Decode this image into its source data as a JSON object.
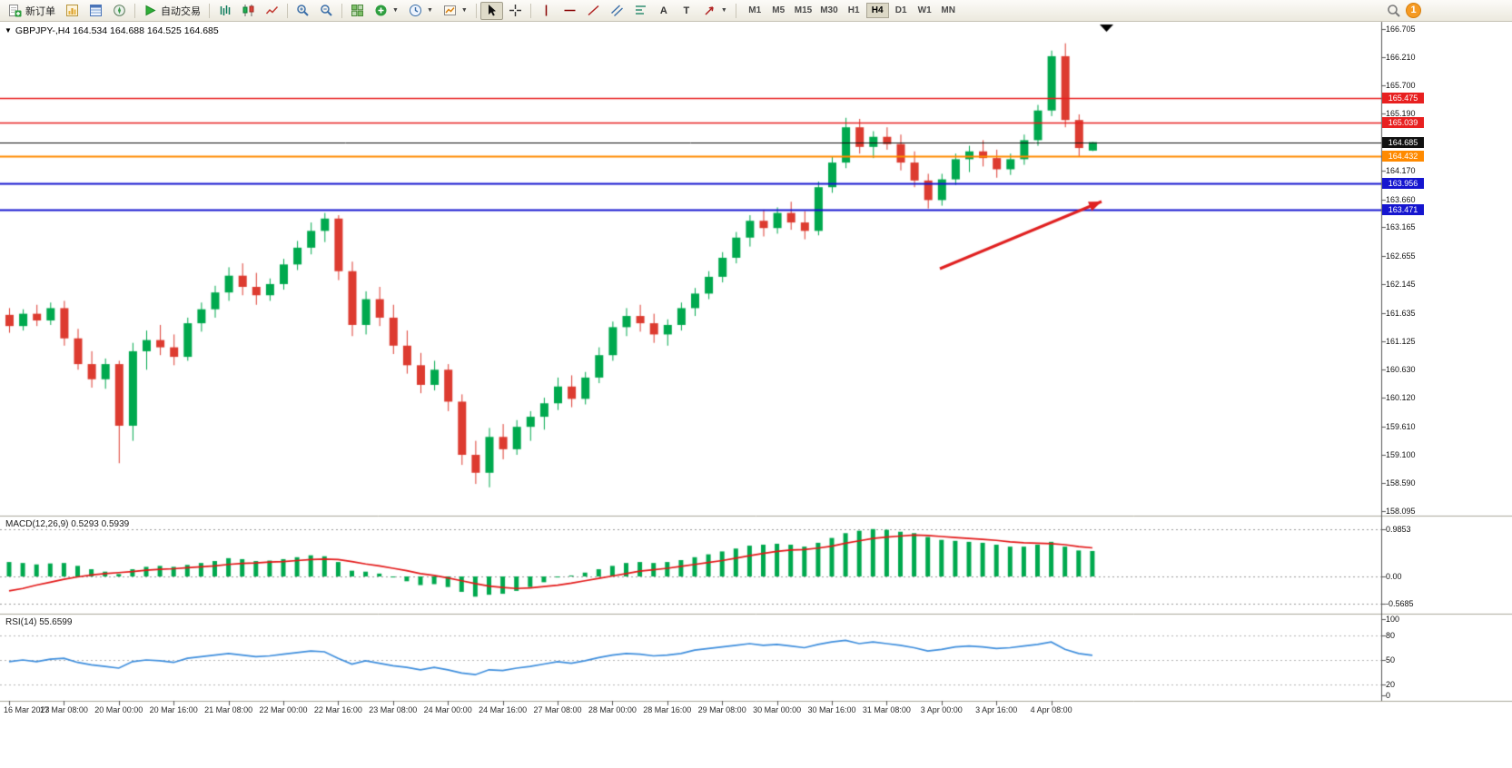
{
  "toolbar": {
    "new_order": "新订单",
    "auto_trading": "自动交易",
    "text_tool": "A",
    "label_tool": "T",
    "timeframes": [
      "M1",
      "M5",
      "M15",
      "M30",
      "H1",
      "H4",
      "D1",
      "W1",
      "MN"
    ],
    "active_timeframe": "H4",
    "notification_badge": "1"
  },
  "chart_header": {
    "title": "GBPJPY-,H4 164.534 164.688 164.525 164.685"
  },
  "price_axis": {
    "ticks": [
      "166.705",
      "166.210",
      "165.700",
      "165.190",
      "164.170",
      "163.660",
      "163.165",
      "162.655",
      "162.145",
      "161.635",
      "161.125",
      "160.630",
      "160.120",
      "159.610",
      "159.100",
      "158.590",
      "158.095"
    ],
    "line_labels": [
      {
        "value": "165.475",
        "color": "#e82020"
      },
      {
        "value": "165.039",
        "color": "#e82020"
      },
      {
        "value": "164.685",
        "color": "#101010"
      },
      {
        "value": "164.432",
        "color": "#ff8a00"
      },
      {
        "value": "163.956",
        "color": "#1515cf"
      },
      {
        "value": "163.471",
        "color": "#1515cf"
      }
    ]
  },
  "macd_panel": {
    "label": "MACD(12,26,9) 0.5293 0.5939",
    "scale": [
      "0.9853",
      "0.00",
      "-0.5685"
    ]
  },
  "rsi_panel": {
    "label": "RSI(14) 55.6599",
    "scale": [
      "100",
      "80",
      "50",
      "20",
      "0"
    ]
  },
  "time_axis": [
    "16 Mar 2023",
    "17 Mar 08:00",
    "20 Mar 00:00",
    "20 Mar 16:00",
    "21 Mar 08:00",
    "22 Mar 00:00",
    "22 Mar 16:00",
    "23 Mar 08:00",
    "24 Mar 00:00",
    "24 Mar 16:00",
    "27 Mar 08:00",
    "28 Mar 00:00",
    "28 Mar 16:00",
    "29 Mar 08:00",
    "30 Mar 00:00",
    "30 Mar 16:00",
    "31 Mar 08:00",
    "3 Apr 00:00",
    "3 Apr 16:00",
    "4 Apr 08:00"
  ],
  "chart_data": {
    "type": "candlestick",
    "symbol": "GBPJPY-",
    "timeframe": "H4",
    "price_range": [
      158.095,
      166.705
    ],
    "candles": [
      [
        161.6,
        161.72,
        161.28,
        161.4
      ],
      [
        161.4,
        161.7,
        161.32,
        161.62
      ],
      [
        161.62,
        161.78,
        161.4,
        161.5
      ],
      [
        161.5,
        161.82,
        161.42,
        161.72
      ],
      [
        161.72,
        161.85,
        161.05,
        161.18
      ],
      [
        161.18,
        161.35,
        160.62,
        160.72
      ],
      [
        160.72,
        160.95,
        160.3,
        160.45
      ],
      [
        160.45,
        160.82,
        160.28,
        160.72
      ],
      [
        160.72,
        160.78,
        158.95,
        159.62
      ],
      [
        159.62,
        161.1,
        159.35,
        160.95
      ],
      [
        160.95,
        161.32,
        160.62,
        161.15
      ],
      [
        161.15,
        161.42,
        160.88,
        161.02
      ],
      [
        161.02,
        161.25,
        160.7,
        160.85
      ],
      [
        160.85,
        161.55,
        160.78,
        161.45
      ],
      [
        161.45,
        161.82,
        161.3,
        161.7
      ],
      [
        161.7,
        162.12,
        161.55,
        162.0
      ],
      [
        162.0,
        162.45,
        161.85,
        162.3
      ],
      [
        162.3,
        162.52,
        161.95,
        162.1
      ],
      [
        162.1,
        162.35,
        161.78,
        161.95
      ],
      [
        161.95,
        162.25,
        161.85,
        162.15
      ],
      [
        162.15,
        162.6,
        162.05,
        162.5
      ],
      [
        162.5,
        162.92,
        162.4,
        162.8
      ],
      [
        162.8,
        163.25,
        162.68,
        163.1
      ],
      [
        163.1,
        163.42,
        162.9,
        163.32
      ],
      [
        163.32,
        163.38,
        162.22,
        162.38
      ],
      [
        162.38,
        162.55,
        161.22,
        161.42
      ],
      [
        161.42,
        162.02,
        161.25,
        161.88
      ],
      [
        161.88,
        162.1,
        161.4,
        161.55
      ],
      [
        161.55,
        161.78,
        160.9,
        161.05
      ],
      [
        161.05,
        161.32,
        160.55,
        160.7
      ],
      [
        160.7,
        160.92,
        160.2,
        160.35
      ],
      [
        160.35,
        160.78,
        160.25,
        160.62
      ],
      [
        160.62,
        160.72,
        159.88,
        160.05
      ],
      [
        160.05,
        160.18,
        158.92,
        159.1
      ],
      [
        159.1,
        159.35,
        158.58,
        158.78
      ],
      [
        158.78,
        159.58,
        158.52,
        159.42
      ],
      [
        159.42,
        159.65,
        159.02,
        159.2
      ],
      [
        159.2,
        159.72,
        159.1,
        159.6
      ],
      [
        159.6,
        159.88,
        159.35,
        159.78
      ],
      [
        159.78,
        160.12,
        159.55,
        160.02
      ],
      [
        160.02,
        160.48,
        159.9,
        160.32
      ],
      [
        160.32,
        160.52,
        159.95,
        160.1
      ],
      [
        160.1,
        160.58,
        160.0,
        160.48
      ],
      [
        160.48,
        161.02,
        160.38,
        160.88
      ],
      [
        160.88,
        161.48,
        160.78,
        161.38
      ],
      [
        161.38,
        161.72,
        161.22,
        161.58
      ],
      [
        161.58,
        161.78,
        161.3,
        161.45
      ],
      [
        161.45,
        161.62,
        161.1,
        161.25
      ],
      [
        161.25,
        161.52,
        161.05,
        161.42
      ],
      [
        161.42,
        161.82,
        161.32,
        161.72
      ],
      [
        161.72,
        162.08,
        161.58,
        161.98
      ],
      [
        161.98,
        162.38,
        161.88,
        162.28
      ],
      [
        162.28,
        162.72,
        162.18,
        162.62
      ],
      [
        162.62,
        163.08,
        162.52,
        162.98
      ],
      [
        162.98,
        163.38,
        162.82,
        163.28
      ],
      [
        163.28,
        163.48,
        163.0,
        163.15
      ],
      [
        163.15,
        163.52,
        163.05,
        163.42
      ],
      [
        163.42,
        163.62,
        163.12,
        163.25
      ],
      [
        163.25,
        163.45,
        162.95,
        163.1
      ],
      [
        163.1,
        163.98,
        163.02,
        163.88
      ],
      [
        163.88,
        164.42,
        163.78,
        164.32
      ],
      [
        164.32,
        165.12,
        164.22,
        164.95
      ],
      [
        164.95,
        165.1,
        164.48,
        164.6
      ],
      [
        164.6,
        164.88,
        164.4,
        164.78
      ],
      [
        164.78,
        164.95,
        164.55,
        164.65
      ],
      [
        164.65,
        164.82,
        164.18,
        164.32
      ],
      [
        164.32,
        164.52,
        163.88,
        164.0
      ],
      [
        164.0,
        164.12,
        163.5,
        163.65
      ],
      [
        163.65,
        164.12,
        163.55,
        164.02
      ],
      [
        164.02,
        164.48,
        163.92,
        164.38
      ],
      [
        164.38,
        164.62,
        164.15,
        164.52
      ],
      [
        164.52,
        164.72,
        164.25,
        164.4
      ],
      [
        164.4,
        164.55,
        164.05,
        164.2
      ],
      [
        164.2,
        164.48,
        164.1,
        164.38
      ],
      [
        164.38,
        164.82,
        164.28,
        164.72
      ],
      [
        164.72,
        165.35,
        164.62,
        165.25
      ],
      [
        165.25,
        166.32,
        165.15,
        166.22
      ],
      [
        166.22,
        166.45,
        164.95,
        165.08
      ],
      [
        165.08,
        165.18,
        164.42,
        164.58
      ],
      [
        164.534,
        164.688,
        164.525,
        164.685
      ]
    ],
    "hlines": [
      {
        "price": 165.475,
        "color": "#e82020",
        "width": 1.5
      },
      {
        "price": 165.039,
        "color": "#e82020",
        "width": 1.5
      },
      {
        "price": 164.685,
        "color": "#101010",
        "width": 1
      },
      {
        "price": 164.432,
        "color": "#ff8a00",
        "width": 2
      },
      {
        "price": 163.956,
        "color": "#1515cf",
        "width": 2
      },
      {
        "price": 163.471,
        "color": "#1515cf",
        "width": 2
      }
    ],
    "arrow_annotation": {
      "from": [
        1035,
        296
      ],
      "to": [
        1213,
        222
      ],
      "color": "#e02020",
      "width": 3
    },
    "macd": {
      "label_values": [
        0.5293,
        0.5939
      ],
      "range": [
        -0.5685,
        0.9853
      ],
      "histogram": [
        0.3,
        0.28,
        0.25,
        0.27,
        0.28,
        0.22,
        0.15,
        0.1,
        0.05,
        0.15,
        0.2,
        0.22,
        0.2,
        0.24,
        0.28,
        0.32,
        0.38,
        0.36,
        0.32,
        0.33,
        0.36,
        0.4,
        0.44,
        0.42,
        0.3,
        0.12,
        0.1,
        0.06,
        -0.02,
        -0.1,
        -0.18,
        -0.16,
        -0.22,
        -0.32,
        -0.42,
        -0.38,
        -0.36,
        -0.3,
        -0.22,
        -0.12,
        -0.02,
        0.02,
        0.08,
        0.15,
        0.22,
        0.28,
        0.3,
        0.28,
        0.3,
        0.34,
        0.4,
        0.46,
        0.52,
        0.58,
        0.64,
        0.66,
        0.68,
        0.66,
        0.62,
        0.7,
        0.8,
        0.9,
        0.95,
        0.985,
        0.97,
        0.93,
        0.9,
        0.82,
        0.76,
        0.74,
        0.72,
        0.7,
        0.66,
        0.62,
        0.62,
        0.66,
        0.72,
        0.62,
        0.54,
        0.5293
      ],
      "signal": [
        -0.3,
        -0.25,
        -0.18,
        -0.12,
        -0.06,
        -0.01,
        0.03,
        0.06,
        0.08,
        0.1,
        0.13,
        0.15,
        0.16,
        0.18,
        0.2,
        0.22,
        0.25,
        0.27,
        0.28,
        0.3,
        0.31,
        0.33,
        0.35,
        0.36,
        0.35,
        0.31,
        0.26,
        0.22,
        0.17,
        0.12,
        0.06,
        0.02,
        -0.03,
        -0.09,
        -0.15,
        -0.2,
        -0.23,
        -0.25,
        -0.24,
        -0.21,
        -0.18,
        -0.14,
        -0.09,
        -0.04,
        0.01,
        0.06,
        0.11,
        0.14,
        0.17,
        0.21,
        0.25,
        0.29,
        0.33,
        0.38,
        0.43,
        0.48,
        0.52,
        0.55,
        0.56,
        0.59,
        0.63,
        0.69,
        0.74,
        0.79,
        0.82,
        0.84,
        0.86,
        0.85,
        0.83,
        0.81,
        0.79,
        0.77,
        0.75,
        0.72,
        0.7,
        0.69,
        0.68,
        0.66,
        0.62,
        0.5939
      ]
    },
    "rsi": {
      "label_value": 55.6599,
      "range": [
        0,
        100
      ],
      "levels": [
        80,
        50,
        20
      ],
      "values": [
        48,
        50,
        48,
        51,
        52,
        47,
        44,
        42,
        40,
        48,
        50,
        49,
        47,
        52,
        54,
        56,
        58,
        56,
        54,
        55,
        57,
        59,
        61,
        60,
        52,
        45,
        49,
        46,
        43,
        41,
        38,
        41,
        38,
        34,
        32,
        38,
        37,
        40,
        42,
        45,
        48,
        46,
        49,
        53,
        56,
        58,
        57,
        55,
        56,
        58,
        62,
        64,
        66,
        68,
        70,
        68,
        69,
        67,
        65,
        69,
        72,
        74,
        70,
        72,
        70,
        68,
        65,
        61,
        63,
        66,
        67,
        66,
        64,
        65,
        67,
        69,
        72,
        63,
        58,
        55.66
      ]
    },
    "colors": {
      "bull": "#00a94e",
      "bear": "#dd3b30",
      "macd_hist": "#00a94e",
      "macd_signal": "#e31818",
      "rsi_line": "#3e8edd"
    }
  }
}
